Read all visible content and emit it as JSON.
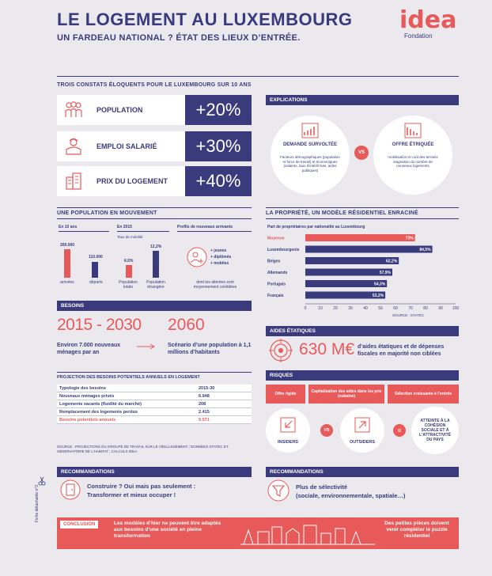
{
  "header": {
    "title": "LE LOGEMENT AU LUXEMBOURG",
    "subtitle": "UN FARDEAU NATIONAL ? ÉTAT DES LIEUX D’ENTRÉE.",
    "logo_word": "idea",
    "logo_sub": "Fondation"
  },
  "constats": {
    "heading": "TROIS CONSTATS ÉLOQUENTS POUR LE LUXEMBOURG SUR 10 ANS",
    "items": [
      {
        "label": "POPULATION",
        "value": "+20%",
        "icon": "people-icon"
      },
      {
        "label": "EMPLOI SALARIÉ",
        "value": "+30%",
        "icon": "worker-icon"
      },
      {
        "label": "PRIX DU LOGEMENT",
        "value": "+40%",
        "icon": "building-icon"
      }
    ]
  },
  "explications": {
    "heading": "EXPLICATIONS",
    "left_title": "DEMANDE SURVOLTÉE",
    "left_text": "Facteurs démographiques (population et force de travail) et économiques (salaires, taux d’intérêt bas, aides publiques)",
    "vs": "VS",
    "right_title": "OFFRE ÉTRIQUÉE",
    "right_text": "mobilisation et coût des terrains stagnation du nombre de nouveaux logements"
  },
  "population": {
    "heading": "UNE POPULATION EN MOUVEMENT",
    "col1_title": "En 10 ans",
    "arrivees_value": "200.000",
    "arrivees_label": "arrivées",
    "departs_value": "110.000",
    "departs_label": "départs",
    "col2_title": "En 2015",
    "col2_sub": "Taux de mobilité",
    "mob_total_value": "6.5%",
    "mob_total_label": "Population totale",
    "mob_etr_value": "12,2%",
    "mob_etr_label": "Population étrangère",
    "col3_title": "Profils de nouveaux arrivants",
    "profils": [
      "+ jeunes",
      "+ diplômés",
      "+ mobiles"
    ],
    "profils_note": "dont les attentes sont moyennement comblées"
  },
  "propriete": {
    "heading": "LA PROPRIÉTÉ, UN MODÈLE RÉSIDENTIEL ENRACINÉ",
    "sub": "Part de propriétaires par nationalité au Luxembourg",
    "source": "SOURCE : STATEC"
  },
  "chart_data": {
    "type": "bar",
    "orientation": "horizontal",
    "title": "Part de propriétaires par nationalité au Luxembourg",
    "categories": [
      "Moyenne",
      "Luxembourgeois",
      "Belges",
      "Allemands",
      "Portugais",
      "Français"
    ],
    "values": [
      73,
      84.5,
      62.2,
      57.9,
      54.3,
      53.2
    ],
    "value_labels": [
      "73%",
      "84,5%",
      "62,2%",
      "57,9%",
      "54,3%",
      "53,2%"
    ],
    "ticks": [
      "0",
      "10",
      "20",
      "30",
      "40",
      "50",
      "60",
      "70",
      "80",
      "90",
      "100"
    ],
    "xlim": [
      0,
      100
    ],
    "colors": {
      "highlight": "#e85a5a",
      "default": "#3a3b7d"
    }
  },
  "besoins": {
    "heading": "BESOINS",
    "period": "2015 - 2030",
    "period_text": "Environ 7.000 nouveaux ménages par an",
    "year": "2060",
    "year_text": "Scénario d’une population à 1,1 millions d’habitants",
    "table_heading": "PROJECTION DES BESOINS POTENTIELS ANNUELS EN LOGEMENT",
    "table_head": [
      "Typologie des besoins",
      "2015-30"
    ],
    "rows": [
      [
        "Nouveaux ménages privés",
        "6.948"
      ],
      [
        "Logements vacants (fluidité du marché)",
        "208"
      ],
      [
        "Remplacement des logements perdus",
        "2.415"
      ],
      [
        "Besoins potentiels annuels",
        "9.571"
      ]
    ],
    "source": "SOURCE : PROJECTIONS DU GROUPE DE TRAVAIL SUR LE VIEILLISSEMENT ; DONNÉES STATEC ET OBSERVATOIRE DE L’HABITAT ; CALCULS IDEA"
  },
  "aides": {
    "heading": "AIDES ÉTATIQUES",
    "value": "630 M€",
    "text": "d’aides étatiques et de dépenses fiscales en majorité non ciblées"
  },
  "risques": {
    "heading": "RISQUES",
    "steps": [
      "Offre rigide",
      "Capitalisation des aides dans les prix (subaine)",
      "Sélection croissante à l’entrée"
    ],
    "insiders": "INSIDERS",
    "vs": "VS",
    "outsiders": "OUTSIDERS",
    "eq": "=",
    "result": "ATTEINTE À LA COHÉSION SOCIALE ET À L’ATTRACTIVITÉ DU PAYS"
  },
  "reco_left": {
    "heading": "RECOMMANDATIONS",
    "line1": "Construire ? Oui mais pas seulement :",
    "line2": "Transformer et mieux occuper !"
  },
  "reco_right": {
    "heading": "RECOMMANDATIONS",
    "line1": "Plus de sélectivité",
    "line2": "(sociale, environnementale, spatiale…)"
  },
  "conclusion": {
    "label": "CONCLUSION",
    "left": "Les modèles d’hier ne peuvent être adaptés aux besoins d’une société en pleine transformation",
    "right": "Des petites pièces doivent venir compléter le puzzle résidentiel"
  },
  "side_note": "Fiche détachable n°3"
}
